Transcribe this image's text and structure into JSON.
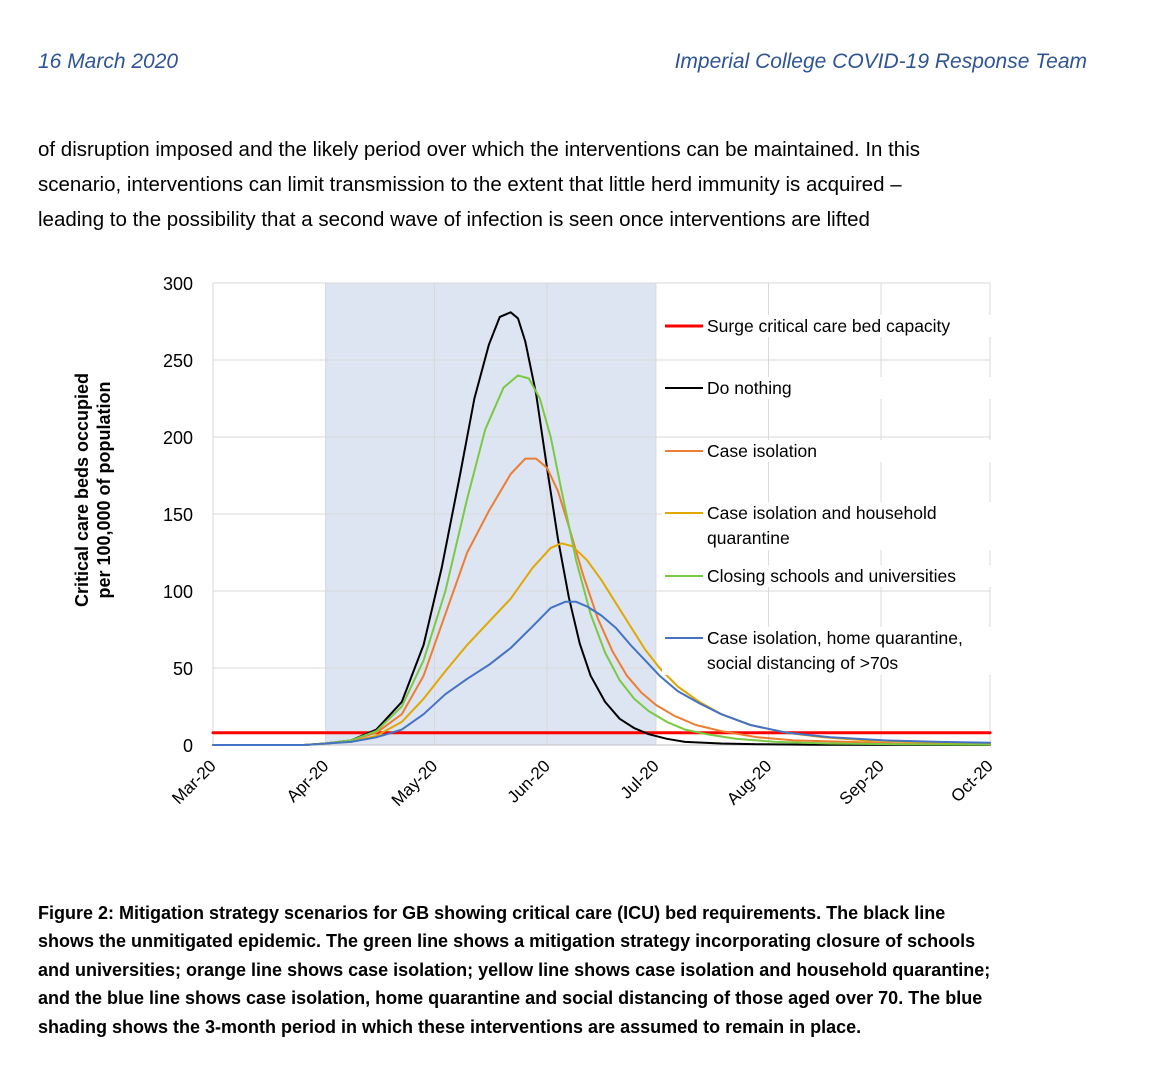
{
  "header": {
    "date": "16 March 2020",
    "team": "Imperial College COVID-19 Response Team"
  },
  "body_lines": [
    "of disruption imposed and the likely period over which the interventions can be maintained. In this",
    "scenario, interventions can limit transmission to the extent that little herd immunity is acquired –",
    "leading to the possibility that a second wave of infection is seen once interventions are lifted"
  ],
  "chart_data": {
    "type": "line",
    "title": "",
    "ylabel_lines": [
      "Critical care beds occupied",
      "per 100,000 of population"
    ],
    "xlabel": "",
    "ylim": [
      0,
      300
    ],
    "yticks": [
      "0",
      "50",
      "100",
      "150",
      "200",
      "250",
      "300"
    ],
    "x_range_days": [
      0,
      214
    ],
    "xticks": [
      {
        "day": 0,
        "label": "Mar-20"
      },
      {
        "day": 31,
        "label": "Apr-20"
      },
      {
        "day": 61,
        "label": "May-20"
      },
      {
        "day": 92,
        "label": "Jun-20"
      },
      {
        "day": 122,
        "label": "Jul-20"
      },
      {
        "day": 153,
        "label": "Aug-20"
      },
      {
        "day": 184,
        "label": "Sep-20"
      },
      {
        "day": 214,
        "label": "Oct-20"
      }
    ],
    "shaded_period_days": [
      31,
      122
    ],
    "shaded_color": "#dde5f3",
    "series": [
      {
        "name": "Surge critical care bed capacity",
        "color": "#ff0000",
        "width": 3,
        "x": [
          0,
          214
        ],
        "y": [
          8,
          8
        ]
      },
      {
        "name": "Do nothing",
        "color": "#000000",
        "width": 2,
        "x": [
          0,
          25,
          31,
          38,
          45,
          52,
          58,
          63,
          68,
          72,
          76,
          79,
          82,
          84,
          86,
          89,
          92,
          95,
          98,
          101,
          104,
          108,
          112,
          116,
          120,
          125,
          130,
          140,
          150,
          165,
          214
        ],
        "y": [
          0,
          0,
          1,
          3,
          10,
          28,
          65,
          115,
          175,
          225,
          260,
          278,
          281,
          277,
          262,
          228,
          180,
          134,
          96,
          66,
          45,
          28,
          17,
          11,
          7,
          4,
          2,
          1,
          0.5,
          0.2,
          0
        ]
      },
      {
        "name": "Case isolation",
        "color": "#ed7d31",
        "width": 2,
        "x": [
          0,
          25,
          31,
          38,
          45,
          52,
          58,
          64,
          70,
          76,
          82,
          86,
          89,
          92,
          95,
          98,
          102,
          106,
          110,
          114,
          118,
          122,
          127,
          133,
          140,
          150,
          160,
          175,
          190,
          214
        ],
        "y": [
          0,
          0,
          1,
          3,
          8,
          20,
          45,
          85,
          125,
          152,
          176,
          186,
          186,
          180,
          165,
          142,
          110,
          82,
          61,
          45,
          34,
          26,
          19,
          13,
          9,
          5,
          3,
          2,
          1,
          0.5
        ]
      },
      {
        "name": "Case isolation and household quarantine",
        "color": "#e0a800",
        "width": 2,
        "x": [
          0,
          25,
          31,
          38,
          45,
          52,
          58,
          64,
          70,
          76,
          82,
          88,
          93,
          96,
          99,
          103,
          107,
          111,
          115,
          119,
          123,
          128,
          134,
          140,
          148,
          158,
          168,
          180,
          195,
          214
        ],
        "y": [
          0,
          0,
          1,
          2,
          6,
          15,
          30,
          48,
          65,
          80,
          95,
          115,
          128,
          131,
          129,
          120,
          107,
          92,
          77,
          62,
          50,
          38,
          28,
          20,
          13,
          8,
          5,
          3,
          2,
          1
        ]
      },
      {
        "name": "Closing schools and universities",
        "color": "#7ac943",
        "width": 2,
        "x": [
          0,
          25,
          31,
          38,
          45,
          52,
          58,
          64,
          70,
          75,
          80,
          84,
          87,
          90,
          93,
          96,
          100,
          104,
          108,
          112,
          116,
          120,
          125,
          130,
          136,
          144,
          155,
          170,
          190,
          214
        ],
        "y": [
          0,
          0,
          1,
          3,
          9,
          25,
          55,
          100,
          160,
          205,
          232,
          240,
          238,
          225,
          200,
          165,
          120,
          85,
          60,
          42,
          30,
          22,
          15,
          10,
          7,
          4,
          2,
          1,
          0.5,
          0.2
        ]
      },
      {
        "name": "Case isolation, home quarantine, social distancing of >70s",
        "color": "#4472c4",
        "width": 2,
        "x": [
          0,
          25,
          31,
          38,
          45,
          52,
          58,
          64,
          70,
          76,
          82,
          88,
          93,
          97,
          100,
          103,
          107,
          111,
          115,
          119,
          123,
          128,
          134,
          140,
          148,
          158,
          170,
          185,
          200,
          214
        ],
        "y": [
          0,
          0,
          1,
          2,
          5,
          10,
          20,
          33,
          43,
          52,
          63,
          77,
          89,
          93,
          93,
          90,
          84,
          76,
          65,
          55,
          45,
          35,
          27,
          20,
          13,
          8,
          5,
          3,
          2,
          1.5
        ]
      }
    ],
    "legend": {
      "placement": "right",
      "entries": [
        {
          "lines": [
            "Surge critical care bed capacity"
          ],
          "color": "#ff0000"
        },
        {
          "lines": [
            "Do nothing"
          ],
          "color": "#000000"
        },
        {
          "lines": [
            "Case isolation"
          ],
          "color": "#ed7d31"
        },
        {
          "lines": [
            "Case isolation and household",
            "quarantine"
          ],
          "color": "#e0a800"
        },
        {
          "lines": [
            "Closing schools and universities"
          ],
          "color": "#7ac943"
        },
        {
          "lines": [
            "Case isolation, home quarantine,",
            "social distancing of >70s"
          ],
          "color": "#4472c4"
        }
      ]
    }
  },
  "caption_lines": [
    "Figure 2: Mitigation strategy scenarios for GB showing critical care (ICU) bed requirements. The black line",
    "shows the unmitigated epidemic. The green line shows a mitigation strategy incorporating closure of schools",
    "and universities; orange line shows case isolation; yellow line shows case isolation and household quarantine;",
    "and the blue line shows case isolation, home quarantine and social distancing of those aged over 70. The blue",
    "shading shows the 3-month period in which these interventions are assumed to remain in place."
  ]
}
